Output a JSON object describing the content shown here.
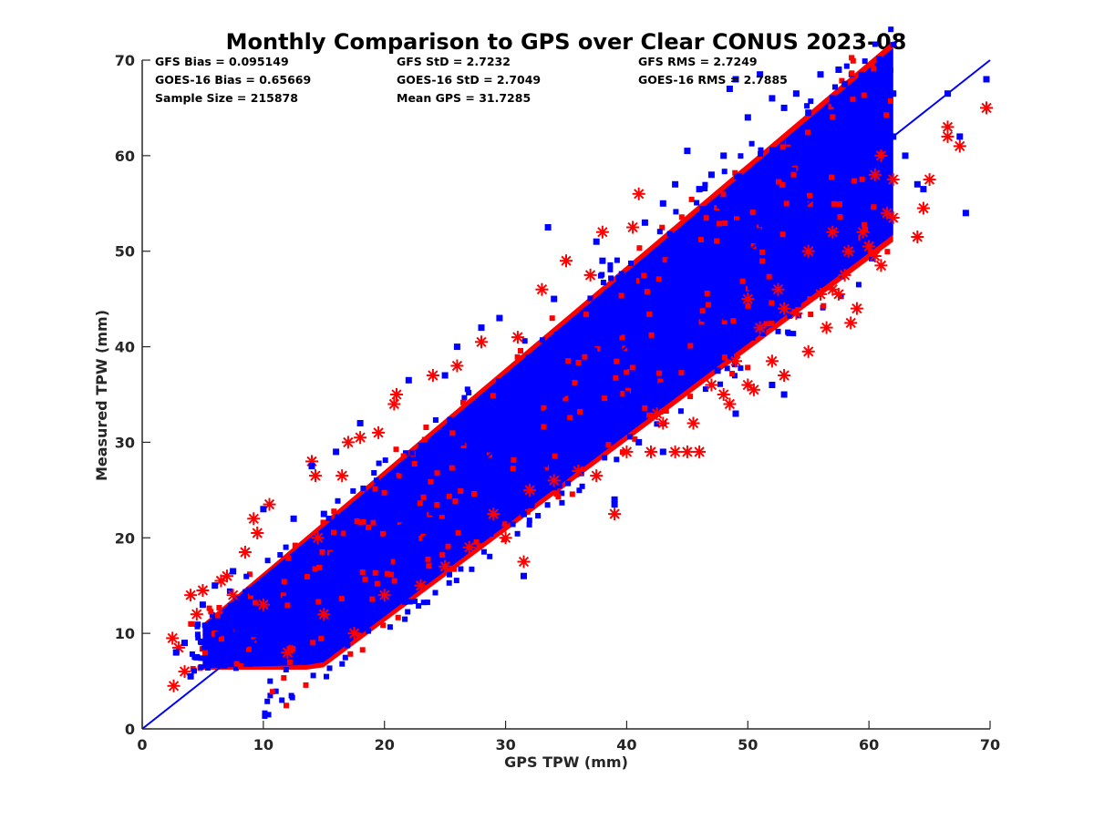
{
  "chart_data": {
    "type": "scatter",
    "title": "Monthly Comparison to GPS over Clear CONUS 2023-08",
    "xlabel": "GPS TPW (mm)",
    "ylabel": "Measured TPW (mm)",
    "xlim": [
      0,
      70
    ],
    "ylim": [
      0,
      70
    ],
    "xticks": [
      "0",
      "10",
      "20",
      "30",
      "40",
      "50",
      "60",
      "70"
    ],
    "yticks": [
      "0",
      "10",
      "20",
      "30",
      "40",
      "50",
      "60",
      "70"
    ],
    "grid": false,
    "legend": null,
    "reference_line": {
      "description": "1:1 line",
      "x": [
        0,
        70
      ],
      "y": [
        0,
        70
      ],
      "color": "#0000ff"
    },
    "annotations": [
      "GFS Bias = 0.095149",
      "GFS StD = 2.7232",
      "GFS RMS = 2.7249",
      "GOES-16 Bias = 0.65669",
      "GOES-16 StD = 2.7049",
      "GOES-16 RMS = 2.7885",
      "Sample Size = 215878",
      "Mean GPS = 31.7285"
    ],
    "series": [
      {
        "marker": "asterisk",
        "color": "#ff0000",
        "points": [
          [
            2.5,
            9.5
          ],
          [
            2.6,
            4.5
          ],
          [
            3.0,
            8.5
          ],
          [
            3.5,
            6.0
          ],
          [
            4.0,
            14.0
          ],
          [
            4.5,
            12.0
          ],
          [
            5.0,
            14.5
          ],
          [
            6.5,
            15.5
          ],
          [
            7.0,
            16.0
          ],
          [
            7.5,
            14.0
          ],
          [
            8.5,
            18.5
          ],
          [
            9.2,
            22.0
          ],
          [
            9.5,
            20.5
          ],
          [
            10.5,
            23.5
          ],
          [
            10.0,
            13.0
          ],
          [
            12.0,
            8.0
          ],
          [
            14.0,
            28.0
          ],
          [
            14.3,
            26.5
          ],
          [
            14.5,
            20.0
          ],
          [
            15.0,
            12.0
          ],
          [
            16.5,
            26.5
          ],
          [
            17.0,
            30.0
          ],
          [
            17.5,
            10.0
          ],
          [
            18.0,
            30.5
          ],
          [
            19.5,
            31.0
          ],
          [
            20.0,
            14.0
          ],
          [
            21.0,
            35.0
          ],
          [
            20.8,
            34.0
          ],
          [
            23.0,
            15.0
          ],
          [
            24.0,
            37.0
          ],
          [
            25.0,
            17.0
          ],
          [
            26.0,
            38.0
          ],
          [
            27.0,
            19.0
          ],
          [
            28.0,
            40.5
          ],
          [
            29.0,
            22.5
          ],
          [
            30.0,
            20.0
          ],
          [
            31.0,
            41.0
          ],
          [
            31.5,
            17.5
          ],
          [
            32.0,
            25.0
          ],
          [
            33.0,
            46.0
          ],
          [
            34.0,
            26.0
          ],
          [
            35.0,
            49.0
          ],
          [
            36.0,
            27.0
          ],
          [
            37.0,
            47.5
          ],
          [
            37.5,
            26.5
          ],
          [
            38.0,
            52.0
          ],
          [
            39.0,
            22.5
          ],
          [
            40.0,
            29.0
          ],
          [
            40.5,
            52.5
          ],
          [
            41.0,
            56.0
          ],
          [
            42.0,
            29.0
          ],
          [
            42.5,
            33.0
          ],
          [
            43.0,
            32.0
          ],
          [
            44.0,
            29.0
          ],
          [
            45.0,
            29.0
          ],
          [
            46.0,
            29.0
          ],
          [
            45.5,
            32.0
          ],
          [
            47.0,
            36.0
          ],
          [
            48.0,
            35.0
          ],
          [
            48.5,
            34.0
          ],
          [
            49.0,
            38.5
          ],
          [
            50.0,
            36.0
          ],
          [
            50.5,
            35.5
          ],
          [
            51.0,
            42.0
          ],
          [
            52.0,
            38.5
          ],
          [
            53.0,
            37.0
          ],
          [
            53.0,
            44.0
          ],
          [
            54.0,
            43.5
          ],
          [
            55.0,
            39.5
          ],
          [
            56.0,
            45.5
          ],
          [
            56.5,
            42.0
          ],
          [
            57.0,
            46.0
          ],
          [
            57.5,
            45.5
          ],
          [
            58.0,
            47.5
          ],
          [
            58.5,
            42.5
          ],
          [
            58.3,
            50.0
          ],
          [
            59.0,
            44.0
          ],
          [
            59.5,
            52.0
          ],
          [
            60.0,
            50.5
          ],
          [
            60.5,
            49.5
          ],
          [
            61.0,
            48.5
          ],
          [
            61.5,
            54.0
          ],
          [
            62.0,
            53.5
          ],
          [
            62.0,
            57.5
          ],
          [
            61.0,
            60.0
          ],
          [
            60.5,
            58.0
          ],
          [
            64.0,
            51.5
          ],
          [
            64.5,
            54.5
          ],
          [
            65.0,
            57.5
          ],
          [
            66.5,
            63.0
          ],
          [
            66.5,
            62.0
          ],
          [
            67.5,
            61.0
          ],
          [
            69.7,
            65.0
          ],
          [
            57.0,
            52.0
          ],
          [
            55.0,
            50.0
          ],
          [
            52.5,
            46.0
          ],
          [
            50.0,
            45.0
          ]
        ]
      },
      {
        "marker": "square",
        "color": "#0000ff",
        "points": [
          [
            2.8,
            8.0
          ],
          [
            3.5,
            9.0
          ],
          [
            4.0,
            5.5
          ],
          [
            4.5,
            7.5
          ],
          [
            5.0,
            13.0
          ],
          [
            6.0,
            15.0
          ],
          [
            7.5,
            16.5
          ],
          [
            10.0,
            23.0
          ],
          [
            12.5,
            22.0
          ],
          [
            14.0,
            27.5
          ],
          [
            15.0,
            22.5
          ],
          [
            16.0,
            29.0
          ],
          [
            18.0,
            32.0
          ],
          [
            22.0,
            36.5
          ],
          [
            25.0,
            37.0
          ],
          [
            26.0,
            40.0
          ],
          [
            28.0,
            42.0
          ],
          [
            29.5,
            43.0
          ],
          [
            31.5,
            16.0
          ],
          [
            33.5,
            52.5
          ],
          [
            34.0,
            45.0
          ],
          [
            37.5,
            51.0
          ],
          [
            38.0,
            49.0
          ],
          [
            39.0,
            24.0
          ],
          [
            39.0,
            23.5
          ],
          [
            41.5,
            53.0
          ],
          [
            43.0,
            55.0
          ],
          [
            44.0,
            57.0
          ],
          [
            45.0,
            60.5
          ],
          [
            46.0,
            56.5
          ],
          [
            47.0,
            58.0
          ],
          [
            48.0,
            60.0
          ],
          [
            48.5,
            67.0
          ],
          [
            49.0,
            68.0
          ],
          [
            50.0,
            64.0
          ],
          [
            51.0,
            68.5
          ],
          [
            52.0,
            66.0
          ],
          [
            53.0,
            65.0
          ],
          [
            54.0,
            66.5
          ],
          [
            55.0,
            64.5
          ],
          [
            56.0,
            68.5
          ],
          [
            57.0,
            66.0
          ],
          [
            57.5,
            69.0
          ],
          [
            58.0,
            67.5
          ],
          [
            58.5,
            66.5
          ],
          [
            59.0,
            65.0
          ],
          [
            60.0,
            63.0
          ],
          [
            60.5,
            61.0
          ],
          [
            61.5,
            59.5
          ],
          [
            62.0,
            62.0
          ],
          [
            62.0,
            66.5
          ],
          [
            63.0,
            60.0
          ],
          [
            64.0,
            57.0
          ],
          [
            64.5,
            56.5
          ],
          [
            66.5,
            66.5
          ],
          [
            67.5,
            62.0
          ],
          [
            69.7,
            68.0
          ],
          [
            68.0,
            54.0
          ],
          [
            52.0,
            36.0
          ],
          [
            53.0,
            35.0
          ],
          [
            49.0,
            33.0
          ],
          [
            47.5,
            37.5
          ],
          [
            43.0,
            29.0
          ],
          [
            41.0,
            30.0
          ],
          [
            35.0,
            28.0
          ],
          [
            33.0,
            27.0
          ],
          [
            31.5,
            22.5
          ]
        ]
      }
    ]
  }
}
